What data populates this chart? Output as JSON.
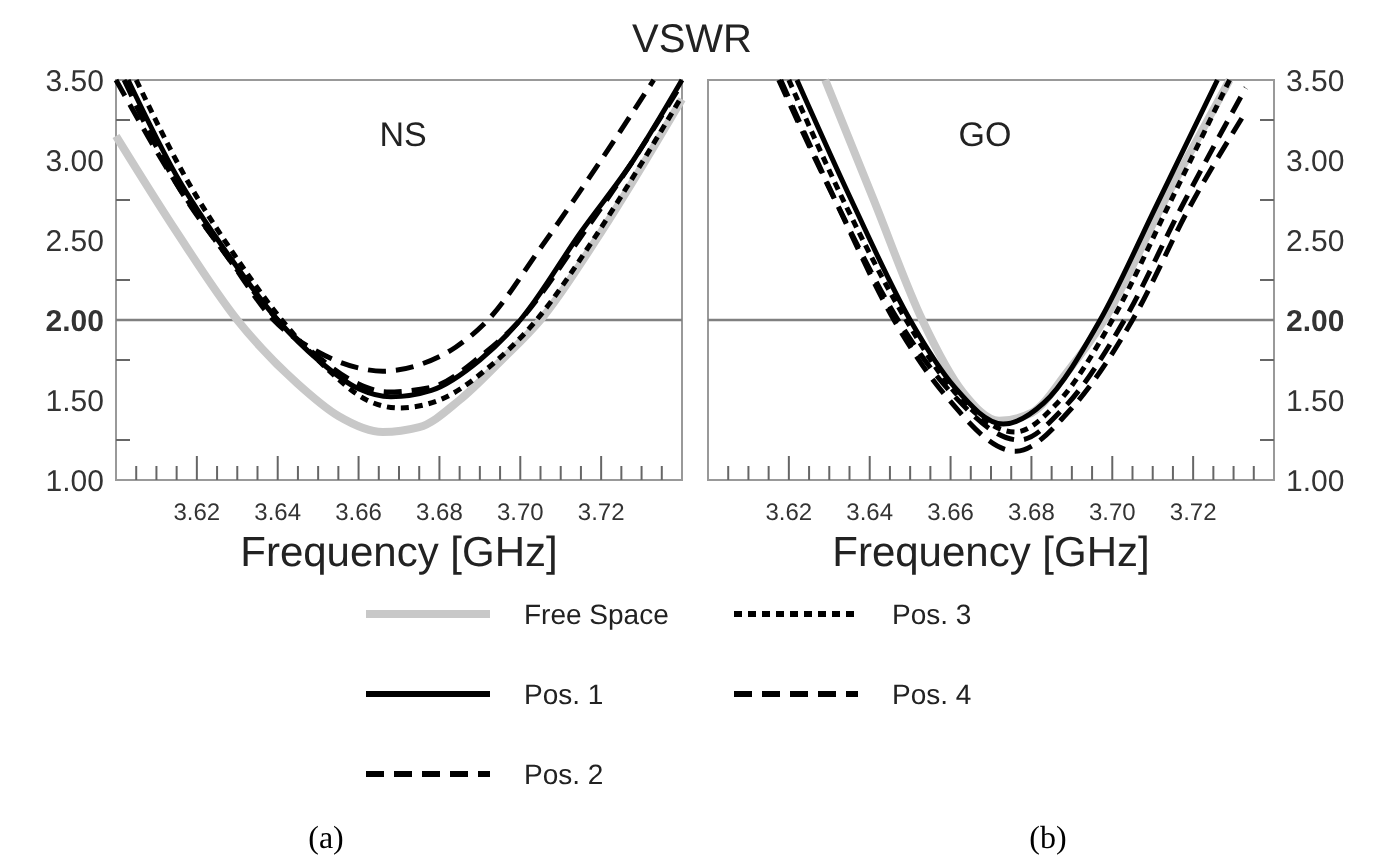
{
  "chart_data": [
    {
      "type": "line",
      "title": "VSWR",
      "xlabel": "Frequency [GHz]",
      "annotations": [
        "NS",
        "(a)"
      ],
      "xlim": [
        3.6,
        3.74
      ],
      "ylim": [
        1,
        3.5
      ],
      "xticks": [
        {
          "value": 3.605,
          "label": null
        },
        {
          "value": 3.61,
          "label": null
        },
        {
          "value": 3.615,
          "label": null
        },
        {
          "value": 3.62,
          "label": "3.62"
        },
        {
          "value": 3.625,
          "label": null
        },
        {
          "value": 3.63,
          "label": null
        },
        {
          "value": 3.635,
          "label": null
        },
        {
          "value": 3.64,
          "label": "3.64"
        },
        {
          "value": 3.645,
          "label": null
        },
        {
          "value": 3.65,
          "label": null
        },
        {
          "value": 3.655,
          "label": null
        },
        {
          "value": 3.66,
          "label": "3.66"
        },
        {
          "value": 3.665,
          "label": null
        },
        {
          "value": 3.67,
          "label": null
        },
        {
          "value": 3.675,
          "label": null
        },
        {
          "value": 3.68,
          "label": "3.68"
        },
        {
          "value": 3.685,
          "label": null
        },
        {
          "value": 3.69,
          "label": null
        },
        {
          "value": 3.695,
          "label": null
        },
        {
          "value": 3.7,
          "label": "3.70"
        },
        {
          "value": 3.705,
          "label": null
        },
        {
          "value": 3.71,
          "label": null
        },
        {
          "value": 3.715,
          "label": null
        },
        {
          "value": 3.72,
          "label": "3.72"
        },
        {
          "value": 3.725,
          "label": null
        },
        {
          "value": 3.73,
          "label": null
        },
        {
          "value": 3.735,
          "label": null
        }
      ],
      "yticks": [
        {
          "value": 1,
          "label": "1.00"
        },
        {
          "value": 1.25,
          "label": null
        },
        {
          "value": 1.5,
          "label": "1.50"
        },
        {
          "value": 1.75,
          "label": null
        },
        {
          "value": 2,
          "label": "2.00"
        },
        {
          "value": 2.25,
          "label": null
        },
        {
          "value": 2.5,
          "label": "2.50"
        },
        {
          "value": 2.75,
          "label": null
        },
        {
          "value": 3,
          "label": "3.00"
        },
        {
          "value": 3.25,
          "label": null
        },
        {
          "value": 3.5,
          "label": "3.50"
        }
      ],
      "ref_lines": [
        {
          "axis": "y",
          "value": 2,
          "color": "#808080"
        }
      ],
      "legend": "bottom",
      "series": [
        {
          "name": "Free Space",
          "color": "#c8c8c8",
          "line_style": "solid",
          "x": [
            3.6,
            3.615,
            3.63,
            3.645,
            3.655,
            3.666,
            3.675,
            3.685,
            3.695,
            3.705,
            3.72,
            3.74
          ],
          "values": [
            3.15,
            2.55,
            2.0,
            1.6,
            1.4,
            1.3,
            1.33,
            1.5,
            1.74,
            2.0,
            2.55,
            3.38
          ]
        },
        {
          "name": "Pos. 1",
          "color": "#000000",
          "line_style": "solid",
          "x": [
            3.603,
            3.615,
            3.628,
            3.64,
            3.65,
            3.66,
            3.668,
            3.678,
            3.69,
            3.7,
            3.715,
            3.728,
            3.74
          ],
          "values": [
            3.5,
            2.9,
            2.4,
            2.0,
            1.75,
            1.57,
            1.52,
            1.56,
            1.75,
            2.0,
            2.55,
            3.0,
            3.5
          ]
        },
        {
          "name": "Pos. 2",
          "color": "#000000",
          "line_style": "dashed",
          "x": [
            3.6,
            3.615,
            3.628,
            3.64,
            3.65,
            3.66,
            3.667,
            3.678,
            3.69,
            3.7,
            3.715,
            3.728,
            3.74
          ],
          "values": [
            3.5,
            2.85,
            2.38,
            2.0,
            1.77,
            1.6,
            1.55,
            1.58,
            1.77,
            2.0,
            2.52,
            3.0,
            3.48
          ]
        },
        {
          "name": "Pos. 3",
          "color": "#000000",
          "line_style": "dotted",
          "x": [
            3.605,
            3.617,
            3.63,
            3.641,
            3.652,
            3.662,
            3.67,
            3.68,
            3.692,
            3.704,
            3.718,
            3.73,
            3.74
          ],
          "values": [
            3.5,
            2.9,
            2.38,
            2.0,
            1.7,
            1.5,
            1.45,
            1.5,
            1.7,
            2.0,
            2.5,
            2.98,
            3.4
          ]
        },
        {
          "name": "Pos. 4",
          "color": "#000000",
          "line_style": "dashed",
          "x": [
            3.602,
            3.615,
            3.628,
            3.639,
            3.65,
            3.66,
            3.666,
            3.675,
            3.684,
            3.692,
            3.705,
            3.72,
            3.733
          ],
          "values": [
            3.5,
            2.85,
            2.38,
            2.0,
            1.8,
            1.7,
            1.68,
            1.72,
            1.83,
            2.0,
            2.45,
            3.0,
            3.5
          ]
        }
      ]
    },
    {
      "type": "line",
      "xlabel": "Frequency [GHz]",
      "annotations": [
        "GO",
        "(b)"
      ],
      "xlim": [
        3.6,
        3.74
      ],
      "ylim": [
        1,
        3.5
      ],
      "xticks": [
        {
          "value": 3.605,
          "label": null
        },
        {
          "value": 3.61,
          "label": null
        },
        {
          "value": 3.615,
          "label": null
        },
        {
          "value": 3.62,
          "label": "3.62"
        },
        {
          "value": 3.625,
          "label": null
        },
        {
          "value": 3.63,
          "label": null
        },
        {
          "value": 3.635,
          "label": null
        },
        {
          "value": 3.64,
          "label": "3.64"
        },
        {
          "value": 3.645,
          "label": null
        },
        {
          "value": 3.65,
          "label": null
        },
        {
          "value": 3.655,
          "label": null
        },
        {
          "value": 3.66,
          "label": "3.66"
        },
        {
          "value": 3.665,
          "label": null
        },
        {
          "value": 3.67,
          "label": null
        },
        {
          "value": 3.675,
          "label": null
        },
        {
          "value": 3.68,
          "label": "3.68"
        },
        {
          "value": 3.685,
          "label": null
        },
        {
          "value": 3.69,
          "label": null
        },
        {
          "value": 3.695,
          "label": null
        },
        {
          "value": 3.7,
          "label": "3.70"
        },
        {
          "value": 3.705,
          "label": null
        },
        {
          "value": 3.71,
          "label": null
        },
        {
          "value": 3.715,
          "label": null
        },
        {
          "value": 3.72,
          "label": "3.72"
        },
        {
          "value": 3.725,
          "label": null
        },
        {
          "value": 3.73,
          "label": null
        },
        {
          "value": 3.735,
          "label": null
        }
      ],
      "yticks": [
        {
          "value": 1,
          "label": "1.00"
        },
        {
          "value": 1.25,
          "label": null
        },
        {
          "value": 1.5,
          "label": "1.50"
        },
        {
          "value": 1.75,
          "label": null
        },
        {
          "value": 2,
          "label": "2.00"
        },
        {
          "value": 2.25,
          "label": null
        },
        {
          "value": 2.5,
          "label": "2.50"
        },
        {
          "value": 2.75,
          "label": null
        },
        {
          "value": 3,
          "label": "3.00"
        },
        {
          "value": 3.25,
          "label": null
        },
        {
          "value": 3.5,
          "label": "3.50"
        }
      ],
      "ref_lines": [
        {
          "axis": "y",
          "value": 2,
          "color": "#808080"
        }
      ],
      "series": [
        {
          "color": "#c8c8c8",
          "line_style": "solid",
          "x": [
            3.629,
            3.641,
            3.653,
            3.663,
            3.672,
            3.68,
            3.689,
            3.698,
            3.712,
            3.729
          ],
          "values": [
            3.5,
            2.75,
            2.0,
            1.55,
            1.37,
            1.42,
            1.68,
            2.0,
            2.7,
            3.5
          ]
        },
        {
          "color": "#000000",
          "line_style": "solid",
          "x": [
            3.622,
            3.636,
            3.65,
            3.661,
            3.673,
            3.683,
            3.697,
            3.711,
            3.726
          ],
          "values": [
            3.5,
            2.72,
            2.0,
            1.58,
            1.35,
            1.48,
            2.0,
            2.72,
            3.5
          ]
        },
        {
          "color": "#000000",
          "line_style": "dashed",
          "x": [
            3.6175,
            3.632,
            3.647,
            3.66,
            3.677,
            3.688,
            3.703,
            3.717,
            3.733
          ],
          "values": [
            3.5,
            2.72,
            2.0,
            1.55,
            1.25,
            1.45,
            2.0,
            2.7,
            3.45
          ]
        },
        {
          "color": "#000000",
          "line_style": "dotted",
          "x": [
            3.62,
            3.634,
            3.649,
            3.661,
            3.676,
            3.686,
            3.7,
            3.714,
            3.729
          ],
          "values": [
            3.5,
            2.72,
            2.0,
            1.55,
            1.3,
            1.47,
            2.0,
            2.72,
            3.5
          ]
        },
        {
          "color": "#000000",
          "line_style": "dashed",
          "x": [
            3.618,
            3.632,
            3.646,
            3.659,
            3.676,
            3.69,
            3.705,
            3.719,
            3.733
          ],
          "values": [
            3.5,
            2.72,
            2.0,
            1.52,
            1.18,
            1.45,
            2.0,
            2.7,
            3.3
          ]
        }
      ]
    }
  ]
}
